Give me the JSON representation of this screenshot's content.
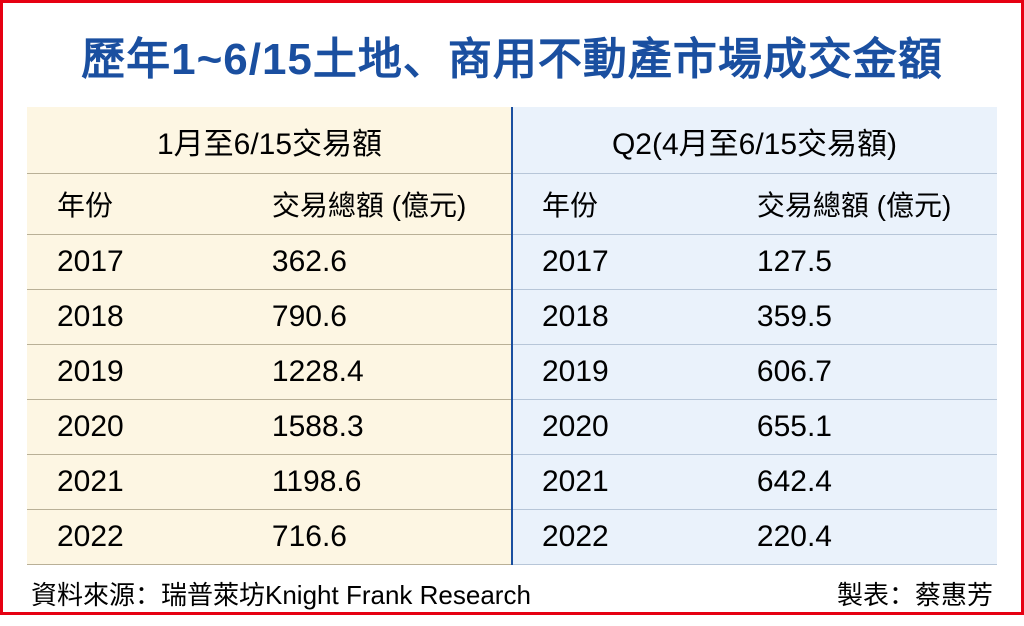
{
  "title": "歷年1~6/15土地、商用不動產市場成交金額",
  "colors": {
    "border": "#e60012",
    "title": "#1a4fa0",
    "accent": "#f4c430",
    "divider": "#1a4fa0",
    "left_bg": "#fdf6e3",
    "right_bg": "#eaf2fb",
    "left_grid": "#b9b097",
    "right_grid": "#b7c6d8",
    "text": "#000000"
  },
  "left": {
    "group_header": "1月至6/15交易額",
    "col_year": "年份",
    "col_value": "交易總額 (億元)",
    "rows": [
      {
        "year": "2017",
        "value": "362.6"
      },
      {
        "year": "2018",
        "value": "790.6"
      },
      {
        "year": "2019",
        "value": "1228.4"
      },
      {
        "year": "2020",
        "value": "1588.3"
      },
      {
        "year": "2021",
        "value": "1198.6"
      },
      {
        "year": "2022",
        "value": "716.6"
      }
    ]
  },
  "right": {
    "group_header": "Q2(4月至6/15交易額)",
    "col_year": "年份",
    "col_value": "交易總額 (億元)",
    "rows": [
      {
        "year": "2017",
        "value": "127.5"
      },
      {
        "year": "2018",
        "value": "359.5"
      },
      {
        "year": "2019",
        "value": "606.7"
      },
      {
        "year": "2020",
        "value": "655.1"
      },
      {
        "year": "2021",
        "value": "642.4"
      },
      {
        "year": "2022",
        "value": "220.4"
      }
    ]
  },
  "footer": {
    "source": "資料來源：瑞普萊坊Knight Frank Research",
    "author": "製表：蔡惠芳"
  }
}
